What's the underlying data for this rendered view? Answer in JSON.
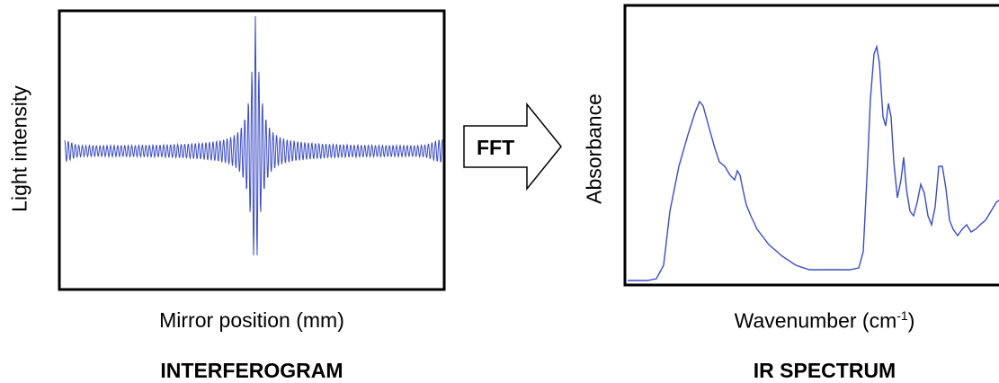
{
  "left_panel": {
    "ylabel": "Light intensity",
    "xlabel": "Mirror position (mm)",
    "caption": "INTERFEROGRAM"
  },
  "arrow": {
    "label": "FFT"
  },
  "right_panel": {
    "ylabel": "Absorbance",
    "xlabel_main": "Wavenumber (cm",
    "xlabel_sup": "-1",
    "xlabel_end": ")",
    "caption": "IR SPECTRUM"
  },
  "colors": {
    "trace": "#3b4cc9",
    "frame": "#000000"
  }
}
